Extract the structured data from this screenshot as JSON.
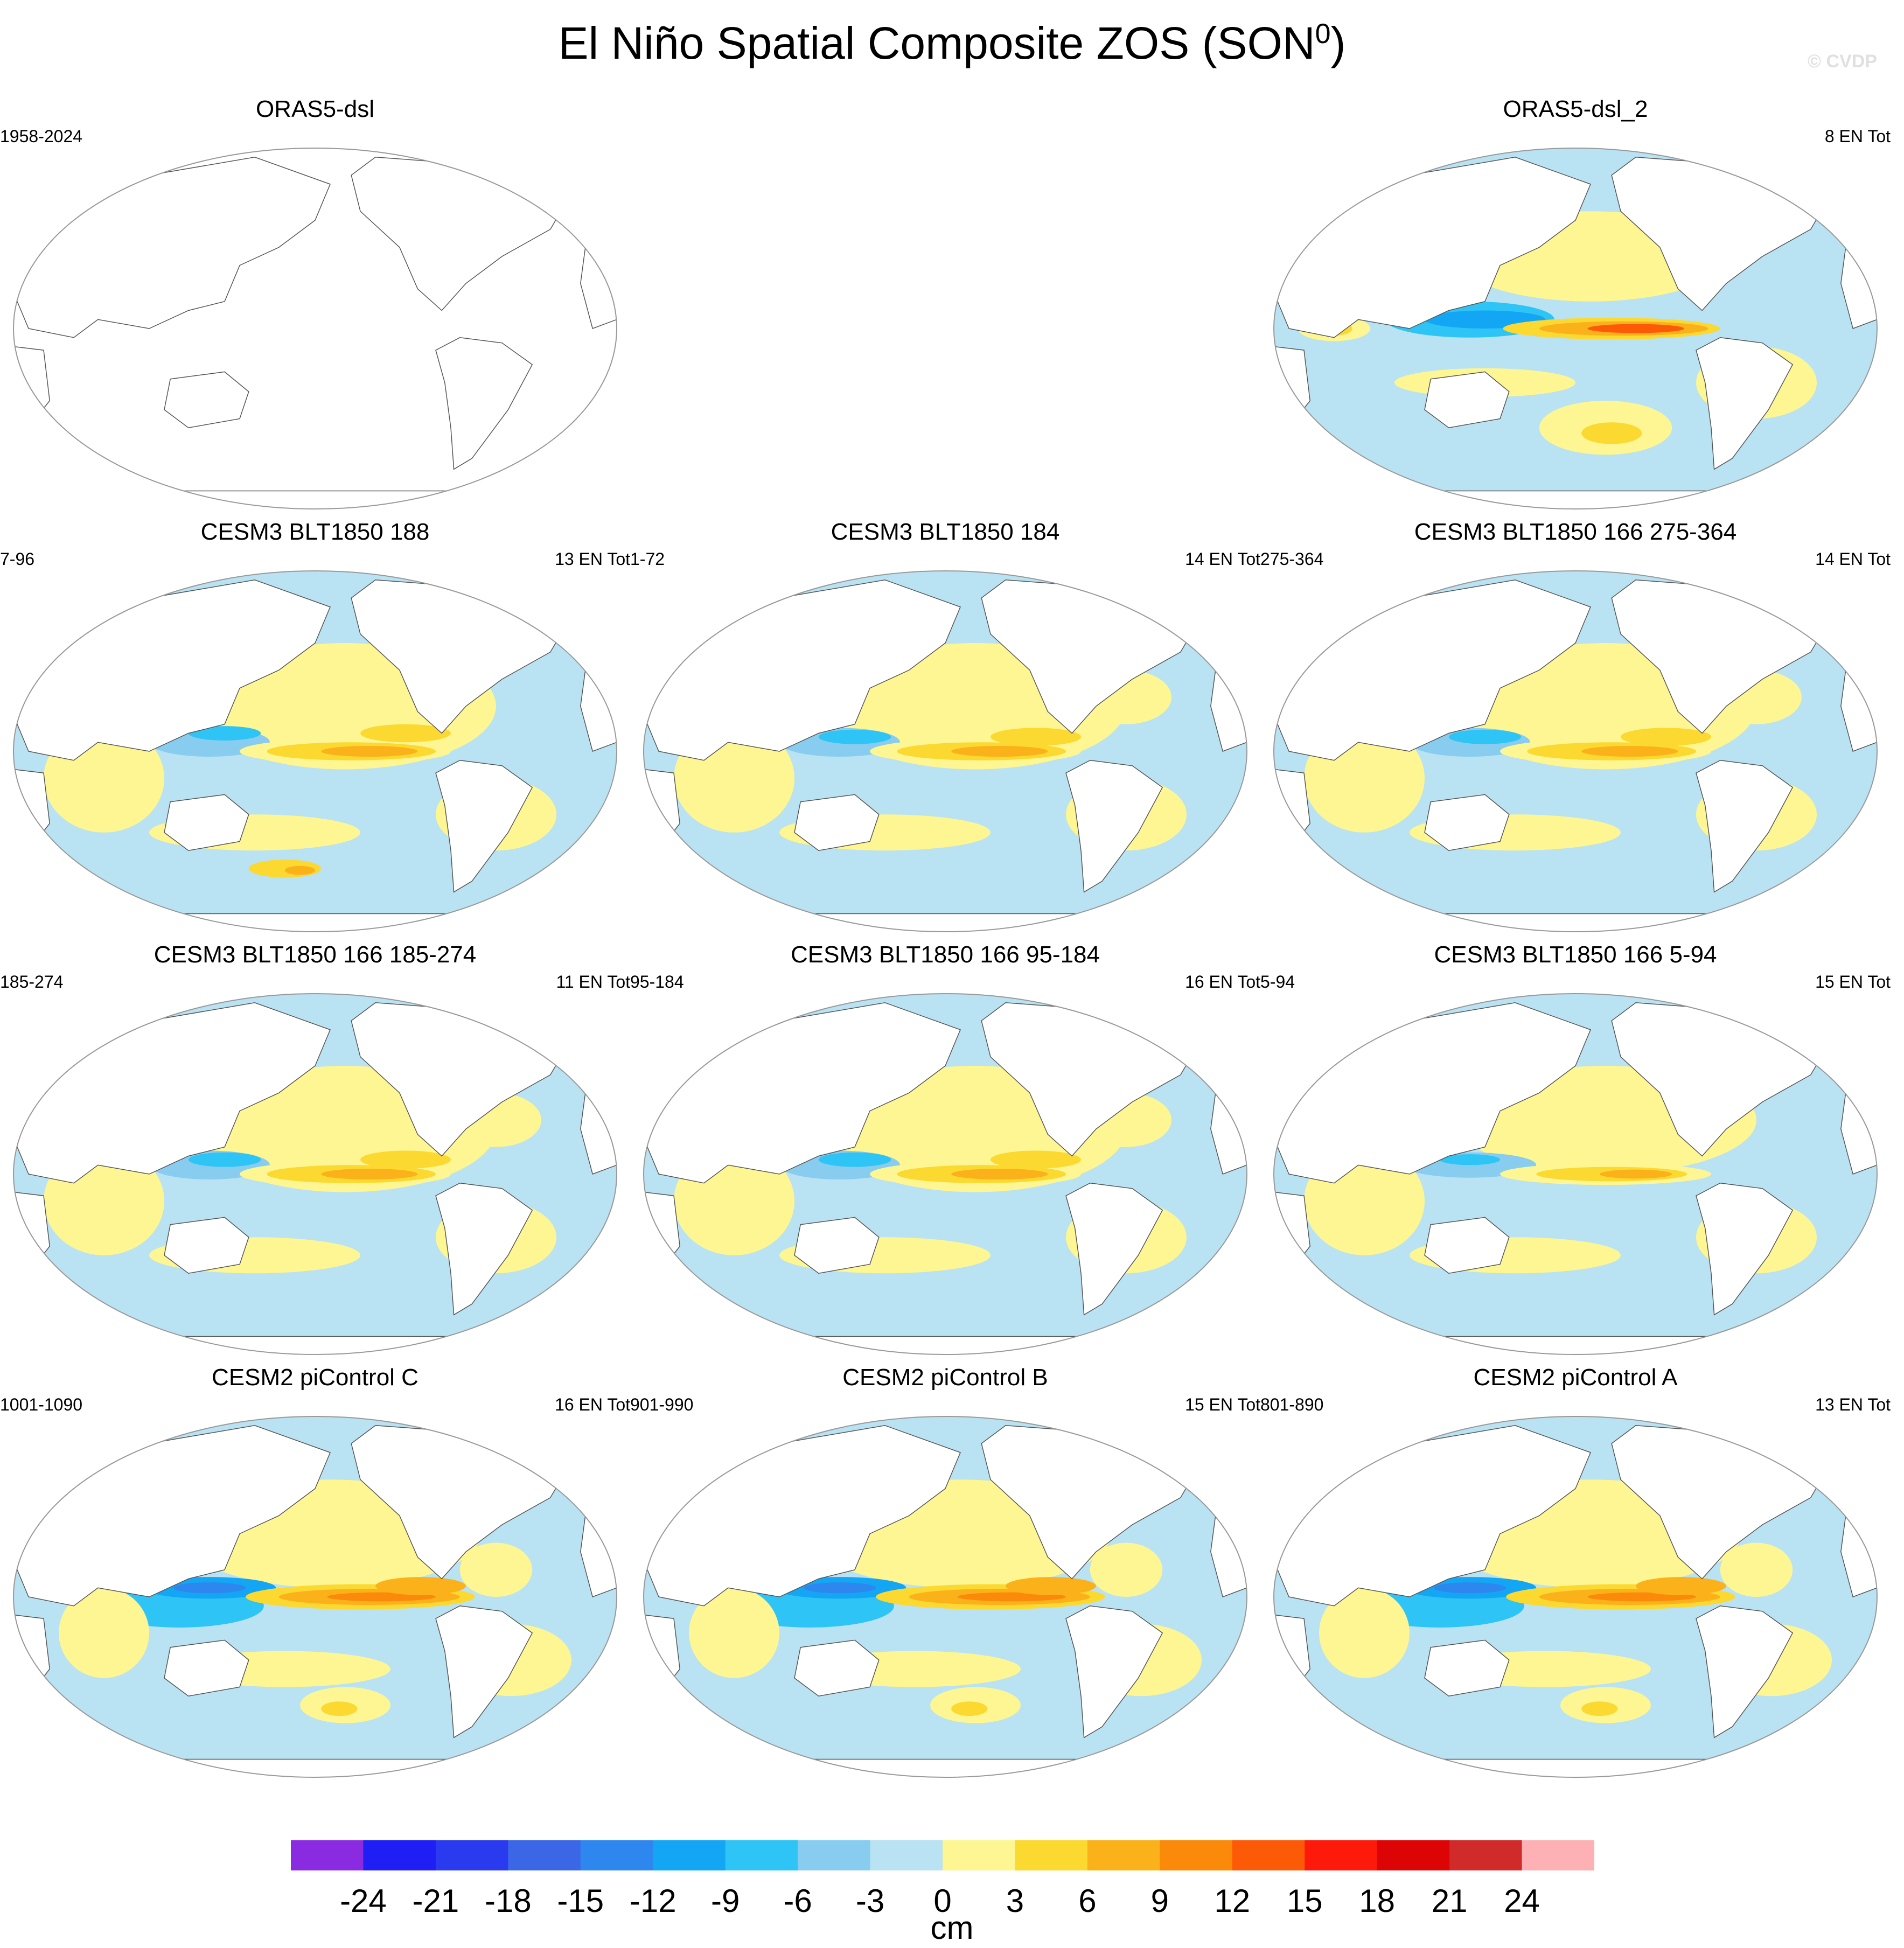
{
  "title_main": "El Niño Spatial Composite ZOS (SON",
  "title_sup": "0",
  "title_close": ")",
  "watermark": "© CVDP",
  "panels": [
    {
      "title": "ORAS5-dsl",
      "left": "1958-2024",
      "right": "",
      "filled": false,
      "pattern": "none"
    },
    {
      "title": "ORAS5-dsl_2",
      "left": "",
      "right": "8 EN Tot",
      "filled": true,
      "pattern": "strong_west"
    },
    {
      "title": "CESM3 BLT1850 188",
      "left": "7-96",
      "right": "13 EN Tot",
      "filled": true,
      "pattern": "moderate_noisy"
    },
    {
      "title": "CESM3 BLT1850 184",
      "left": "1-72",
      "right": "14 EN Tot",
      "filled": true,
      "pattern": "moderate"
    },
    {
      "title": "CESM3 BLT1850 166 275-364",
      "left": "275-364",
      "right": "14 EN Tot",
      "filled": true,
      "pattern": "moderate"
    },
    {
      "title": "CESM3 BLT1850 166 185-274",
      "left": "185-274",
      "right": "11 EN Tot",
      "filled": true,
      "pattern": "moderate"
    },
    {
      "title": "CESM3 BLT1850 166 95-184",
      "left": "95-184",
      "right": "16 EN Tot",
      "filled": true,
      "pattern": "moderate"
    },
    {
      "title": "CESM3 BLT1850 166 5-94",
      "left": "5-94",
      "right": "15 EN Tot",
      "filled": true,
      "pattern": "weak"
    },
    {
      "title": "CESM2 piControl C",
      "left": "1001-1090",
      "right": "16 EN Tot",
      "filled": true,
      "pattern": "strong"
    },
    {
      "title": "CESM2 piControl B",
      "left": "901-990",
      "right": "15 EN Tot",
      "filled": true,
      "pattern": "strong"
    },
    {
      "title": "CESM2 piControl A",
      "left": "801-890",
      "right": "13 EN Tot",
      "filled": true,
      "pattern": "strong"
    }
  ],
  "colorbar": {
    "unit": "cm",
    "ticks": [
      "-24",
      "-21",
      "-18",
      "-15",
      "-12",
      "-9",
      "-6",
      "-3",
      "0",
      "3",
      "6",
      "9",
      "12",
      "15",
      "18",
      "21",
      "24"
    ],
    "colors": [
      "#8a2be2",
      "#1e1ef5",
      "#2a3aee",
      "#3b66e6",
      "#2e86ef",
      "#13a6f4",
      "#2ec4f5",
      "#88cdef",
      "#b9e2f3",
      "#fdf692",
      "#fcd930",
      "#fbb21a",
      "#fc8a0a",
      "#fd5a08",
      "#fe1a0a",
      "#dd0406",
      "#d02a2a",
      "#feb1b4"
    ],
    "bounds": [
      -24,
      24
    ]
  }
}
